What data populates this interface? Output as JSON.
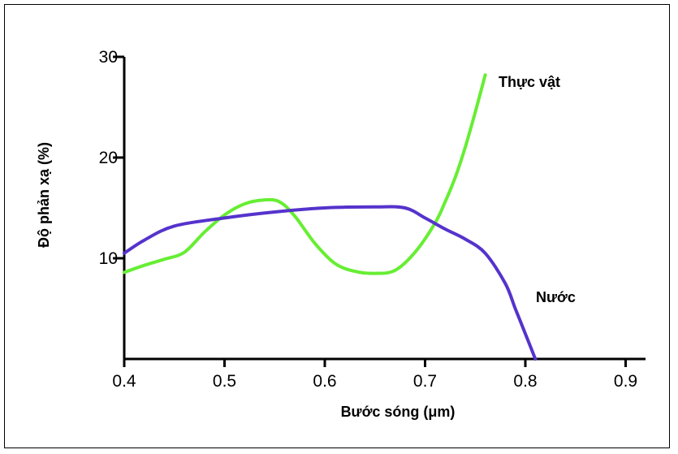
{
  "chart_data": {
    "type": "line",
    "xlabel": "Bước sóng (μm)",
    "ylabel": "Độ phản xạ (%)",
    "xlim": [
      0.4,
      0.92
    ],
    "ylim": [
      0,
      30
    ],
    "x_ticks": [
      "0.4",
      "0.5",
      "0.6",
      "0.7",
      "0.8",
      "0.9"
    ],
    "y_ticks": [
      "10",
      "20",
      "30"
    ],
    "grid": false,
    "legend": "inline labels at line ends",
    "series": [
      {
        "name": "Thực vật",
        "color": "#66ee33",
        "x": [
          0.4,
          0.42,
          0.44,
          0.46,
          0.48,
          0.5,
          0.52,
          0.54,
          0.555,
          0.57,
          0.59,
          0.61,
          0.63,
          0.65,
          0.67,
          0.69,
          0.71,
          0.72,
          0.73,
          0.74,
          0.75,
          0.76
        ],
        "y": [
          8.6,
          9.3,
          9.9,
          10.6,
          12.6,
          14.3,
          15.4,
          15.8,
          15.6,
          14.2,
          11.5,
          9.5,
          8.7,
          8.5,
          8.8,
          10.6,
          13.5,
          15.6,
          18.0,
          21.0,
          24.5,
          28.2
        ]
      },
      {
        "name": "Nước",
        "color": "#5533cc",
        "x": [
          0.4,
          0.42,
          0.45,
          0.5,
          0.55,
          0.6,
          0.65,
          0.68,
          0.7,
          0.72,
          0.74,
          0.76,
          0.78,
          0.79,
          0.8,
          0.81
        ],
        "y": [
          10.5,
          11.8,
          13.2,
          14.0,
          14.6,
          15.0,
          15.1,
          15.0,
          14.0,
          12.9,
          11.9,
          10.5,
          7.5,
          5.0,
          2.5,
          0.0
        ]
      }
    ]
  }
}
